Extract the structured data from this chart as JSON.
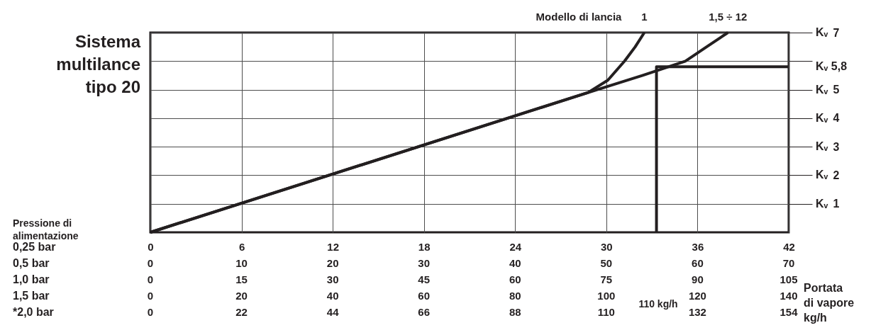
{
  "chart_data": {
    "type": "line",
    "title": "Sistema\nmultilance\ntipo 20",
    "legend_title": "Modello di lancia",
    "ylabel": "Kᵥ",
    "xlim": [
      0,
      42
    ],
    "xticks": [
      0,
      6,
      12,
      18,
      24,
      30,
      36,
      42
    ],
    "ylim": [
      0,
      7
    ],
    "yticks": [
      1,
      2,
      3,
      4,
      5,
      {
        "value": 6,
        "label": null
      },
      7
    ],
    "grid": true,
    "series": [
      {
        "name": "1",
        "color": "#231f20",
        "x": [
          0,
          28.8,
          30.1,
          31.2,
          31.9,
          32.5
        ],
        "values": [
          0,
          4.9,
          5.33,
          6,
          6.5,
          7
        ]
      },
      {
        "name": "1,5 ÷ 12",
        "color": "#231f20",
        "x": [
          0,
          29.4,
          32.4,
          35.2,
          36.6,
          38
        ],
        "values": [
          0,
          5,
          5.5,
          6,
          6.5,
          7
        ]
      },
      {
        "color": "#231f20",
        "x": [
          33.3,
          33.3,
          42
        ],
        "values": [
          0,
          5.8,
          5.8
        ]
      }
    ],
    "annotations": [
      "Pressione di\nalimentazione",
      "0,25 bar",
      "0,5 bar",
      "1,0 bar",
      "1,5 bar",
      "*2,0 bar",
      "0 10 20 30 40 50 60 70",
      "0 15 30 45 60 75 90 105",
      "0 20 40 60 80 100 120 140",
      "0 22 44 66 88 110 132 154",
      "Portata\ndi vapore\nkg/h",
      "110 kg/h",
      {
        "text": "Kᵥ 5,8",
        "x": 42,
        "y": 5.8
      }
    ]
  }
}
